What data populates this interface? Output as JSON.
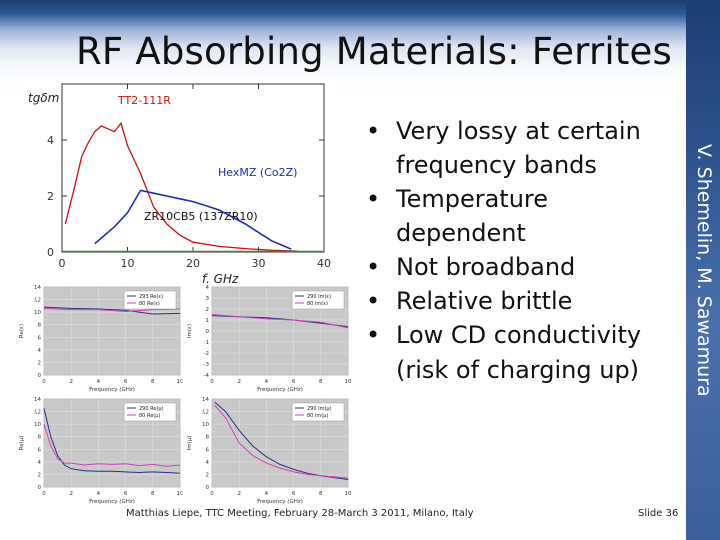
{
  "slide": {
    "title": "RF Absorbing Materials: Ferrites",
    "vertical_credit": "V. Shemelin, M. Sawamura",
    "bullets": [
      "Very lossy at certain frequency bands",
      "Temperature dependent",
      "Not broadband",
      "Relative brittle",
      "Low CD conductivity (risk of charging up)"
    ],
    "footer": "Matthias Liepe, TTC Meeting, February 28-March 3 2011, Milano, Italy",
    "slide_number": "Slide 36"
  },
  "chart_data": [
    {
      "type": "line",
      "ylabel": "tgδm",
      "xlabel": "f, GHz",
      "xlim": [
        0,
        40
      ],
      "ylim": [
        0,
        6
      ],
      "x_ticks": [
        "0",
        "10",
        "20",
        "30",
        "40"
      ],
      "y_ticks": [
        "0",
        "2",
        "4"
      ],
      "annotations": [
        "TT2-111R",
        "HexMZ (Co2Z)",
        "ZR10CB5 (137ZR10)"
      ],
      "colors": {
        "red": "#cc1111",
        "blue": "#1a2fb0",
        "green": "#1a9a1a"
      },
      "series": [
        {
          "x": [
            0.5,
            2,
            3,
            4,
            5,
            6,
            7,
            8,
            9,
            10,
            12,
            14,
            16,
            18,
            20,
            24,
            28,
            32,
            36
          ],
          "values": [
            1.0,
            2.4,
            3.4,
            3.9,
            4.3,
            4.5,
            4.4,
            4.3,
            4.6,
            3.8,
            2.8,
            1.6,
            1.0,
            0.6,
            0.35,
            0.2,
            0.12,
            0.06,
            0.03
          ]
        },
        {
          "x": [
            5,
            8,
            10,
            12,
            14,
            16,
            18,
            20,
            22,
            24,
            26,
            28,
            30,
            32,
            34,
            35
          ],
          "values": [
            0.3,
            0.9,
            1.4,
            2.2,
            2.1,
            2.0,
            1.9,
            1.8,
            1.65,
            1.5,
            1.25,
            1.0,
            0.7,
            0.4,
            0.2,
            0.1
          ]
        },
        {
          "x": [
            0,
            40
          ],
          "values": [
            0.02,
            0.02
          ]
        }
      ]
    },
    {
      "type": "line",
      "ylabel": "Re(ε)",
      "xlabel": "Frequency (GHz)",
      "xlim": [
        0,
        10
      ],
      "ylim": [
        0,
        14
      ],
      "x_ticks": [
        "0",
        "2",
        "4",
        "6",
        "8",
        "10"
      ],
      "y_ticks": [
        "0",
        "2",
        "4",
        "6",
        "8",
        "10",
        "12",
        "14"
      ],
      "series": [
        {
          "name": "293 Re(ε)",
          "x": [
            0,
            2,
            4,
            6,
            8,
            10
          ],
          "values": [
            10.8,
            10.6,
            10.5,
            10.3,
            9.7,
            9.8
          ]
        },
        {
          "name": "80 Re(ε)",
          "x": [
            0,
            2,
            4,
            6,
            8,
            10
          ],
          "values": [
            10.6,
            10.4,
            10.4,
            10.1,
            10.4,
            10.5
          ]
        }
      ]
    },
    {
      "type": "line",
      "ylabel": "Im(ε)",
      "xlabel": "Frequency (GHz)",
      "xlim": [
        0,
        10
      ],
      "ylim": [
        -4,
        4
      ],
      "x_ticks": [
        "0",
        "2",
        "4",
        "6",
        "8",
        "10"
      ],
      "y_ticks": [
        "-4",
        "-3",
        "-2",
        "-1",
        "0",
        "1",
        "2",
        "3",
        "4"
      ],
      "series": [
        {
          "name": "290 Im(ε)",
          "x": [
            0,
            2,
            4,
            6,
            8,
            10
          ],
          "values": [
            1.4,
            1.3,
            1.2,
            1.0,
            0.7,
            0.4
          ]
        },
        {
          "name": "80 Im(ε)",
          "x": [
            0,
            2,
            4,
            6,
            8,
            10
          ],
          "values": [
            1.5,
            1.3,
            1.1,
            1.0,
            0.8,
            0.3
          ]
        }
      ]
    },
    {
      "type": "line",
      "ylabel": "Re(μ)",
      "xlabel": "Frequency (GHz)",
      "xlim": [
        0,
        10
      ],
      "ylim": [
        0,
        14
      ],
      "x_ticks": [
        "0",
        "2",
        "4",
        "6",
        "8",
        "10"
      ],
      "y_ticks": [
        "0",
        "2",
        "4",
        "6",
        "8",
        "10",
        "12",
        "14"
      ],
      "series": [
        {
          "name": "290 Re(μ)",
          "x": [
            0,
            0.5,
            1,
            1.5,
            2,
            3,
            4,
            5,
            6,
            7,
            8,
            9,
            10
          ],
          "values": [
            12.5,
            8,
            5,
            3.5,
            2.9,
            2.6,
            2.5,
            2.5,
            2.4,
            2.3,
            2.4,
            2.3,
            2.2
          ]
        },
        {
          "name": "80 Re(μ)",
          "x": [
            0,
            0.5,
            1,
            1.5,
            2,
            3,
            4,
            5,
            6,
            7,
            8,
            9,
            10
          ],
          "values": [
            10,
            6.5,
            4.5,
            3.8,
            3.8,
            3.5,
            3.7,
            3.6,
            3.7,
            3.4,
            3.6,
            3.3,
            3.5
          ]
        }
      ]
    },
    {
      "type": "line",
      "ylabel": "Im(μ)",
      "xlabel": "Frequency (GHz)",
      "xlim": [
        0,
        10
      ],
      "ylim": [
        0,
        14
      ],
      "x_ticks": [
        "0",
        "2",
        "4",
        "6",
        "8",
        "10"
      ],
      "y_ticks": [
        "0",
        "2",
        "4",
        "6",
        "8",
        "10",
        "12",
        "14"
      ],
      "series": [
        {
          "name": "290 Im(μ)",
          "x": [
            0.2,
            1,
            2,
            3,
            4,
            5,
            6,
            7,
            8,
            9,
            10
          ],
          "values": [
            13.5,
            12,
            9,
            6.5,
            4.8,
            3.6,
            2.8,
            2.2,
            1.8,
            1.5,
            1.2
          ]
        },
        {
          "name": "80 Im(μ)",
          "x": [
            0.2,
            1,
            2,
            3,
            4,
            5,
            6,
            7,
            8,
            9,
            10
          ],
          "values": [
            13,
            11,
            7,
            5,
            3.8,
            3,
            2.4,
            2,
            1.8,
            1.6,
            1.4
          ]
        }
      ]
    }
  ]
}
